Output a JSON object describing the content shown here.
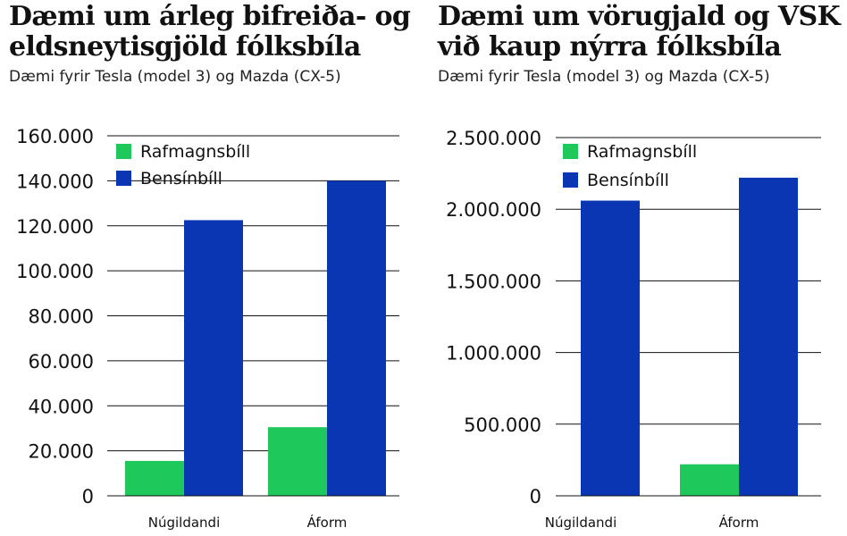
{
  "chart_data": [
    {
      "type": "bar",
      "title": "Dæmi um árleg bifreiða- og eldsneytisgjöld fólksbíla",
      "subtitle": "Dæmi fyrir Tesla (model 3) og Mazda (CX-5)",
      "categories": [
        "Núgildandi",
        "Áform"
      ],
      "series": [
        {
          "name": "Rafmagnsbíll",
          "color": "#1ec85a",
          "values": [
            15500,
            30500
          ]
        },
        {
          "name": "Bensínbíll",
          "color": "#0a36b4",
          "values": [
            122500,
            140000
          ]
        }
      ],
      "ylim": [
        0,
        160000
      ],
      "yticks": [
        0,
        20000,
        40000,
        60000,
        80000,
        100000,
        120000,
        140000,
        160000
      ],
      "ytick_labels": [
        "0",
        "20.000",
        "40.000",
        "60.000",
        "80.000",
        "100.000",
        "120.000",
        "140.000",
        "160.000"
      ],
      "grid": true,
      "legend_position": "top-left"
    },
    {
      "type": "bar",
      "title": "Dæmi um vörugjald og VSK við kaup nýrra fólksbíla",
      "subtitle": "Dæmi fyrir Tesla (model 3) og Mazda (CX-5)",
      "categories": [
        "Núgildandi",
        "Áform"
      ],
      "series": [
        {
          "name": "Rafmagnsbíll",
          "color": "#1ec85a",
          "values": [
            0,
            220000
          ]
        },
        {
          "name": "Bensínbíll",
          "color": "#0a36b4",
          "values": [
            2060000,
            2220000
          ]
        }
      ],
      "ylim": [
        0,
        2500000
      ],
      "yticks": [
        0,
        500000,
        1000000,
        1500000,
        2000000,
        2500000
      ],
      "ytick_labels": [
        "0",
        "500.000",
        "1.000.000",
        "1.500.000",
        "2.000.000",
        "2.500.000"
      ],
      "grid": true,
      "legend_position": "top-left"
    }
  ]
}
